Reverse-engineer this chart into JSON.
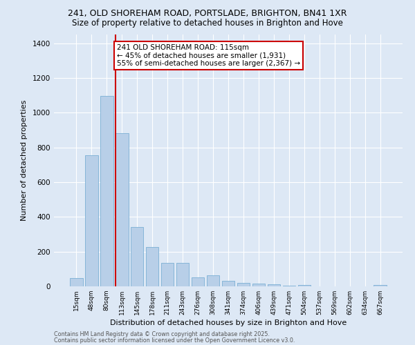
{
  "title_line1": "241, OLD SHOREHAM ROAD, PORTSLADE, BRIGHTON, BN41 1XR",
  "title_line2": "Size of property relative to detached houses in Brighton and Hove",
  "xlabel": "Distribution of detached houses by size in Brighton and Hove",
  "ylabel": "Number of detached properties",
  "categories": [
    "15sqm",
    "48sqm",
    "80sqm",
    "113sqm",
    "145sqm",
    "178sqm",
    "211sqm",
    "243sqm",
    "276sqm",
    "308sqm",
    "341sqm",
    "374sqm",
    "406sqm",
    "439sqm",
    "471sqm",
    "504sqm",
    "537sqm",
    "569sqm",
    "602sqm",
    "634sqm",
    "667sqm"
  ],
  "values": [
    47,
    755,
    1095,
    880,
    340,
    225,
    137,
    137,
    50,
    62,
    30,
    20,
    17,
    10,
    4,
    8,
    1,
    0,
    0,
    0,
    8
  ],
  "bar_color": "#b8cfe8",
  "bar_edge_color": "#7bafd4",
  "property_line_x": 3,
  "annotation_text": "241 OLD SHOREHAM ROAD: 115sqm\n← 45% of detached houses are smaller (1,931)\n55% of semi-detached houses are larger (2,367) →",
  "annotation_box_color": "#ffffff",
  "annotation_box_edge_color": "#cc0000",
  "vline_color": "#cc0000",
  "footer_line1": "Contains HM Land Registry data © Crown copyright and database right 2025.",
  "footer_line2": "Contains public sector information licensed under the Open Government Licence v3.0.",
  "bg_color": "#dde8f5",
  "plot_bg_color": "#dde8f5",
  "ylim": [
    0,
    1450
  ],
  "yticks": [
    0,
    200,
    400,
    600,
    800,
    1000,
    1200,
    1400
  ]
}
